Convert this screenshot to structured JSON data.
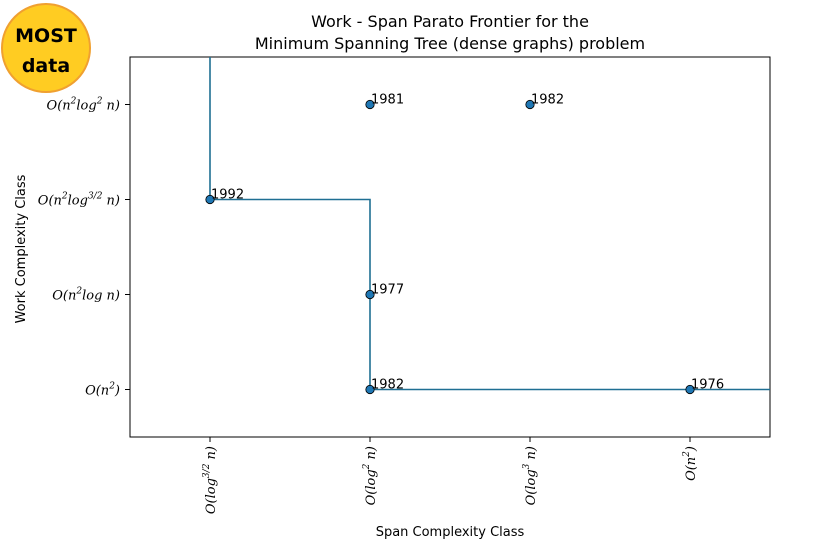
{
  "logo": {
    "line1": "MOST",
    "line2": "data",
    "fill": "#FFCC22",
    "stroke": "#F0A030"
  },
  "chart_data": {
    "type": "scatter",
    "title_lines": [
      "Work - Span Parato Frontier for the",
      "Minimum Spanning Tree (dense graphs) problem"
    ],
    "xlabel": "Span Complexity Class",
    "ylabel": "Work Complexity Class",
    "x_categories": [
      {
        "base": "O(log",
        "sup": "3/2",
        "rest": " n)"
      },
      {
        "base": "O(log",
        "sup": "2",
        "rest": " n)"
      },
      {
        "base": "O(log",
        "sup": "3",
        "rest": " n)"
      },
      {
        "base": "O(n",
        "sup": "2",
        "rest": ")"
      }
    ],
    "y_categories": [
      {
        "parts": [
          {
            "t": "O(n"
          },
          {
            "sup": "2"
          },
          {
            "t": ")"
          }
        ]
      },
      {
        "parts": [
          {
            "t": "O(n"
          },
          {
            "sup": "2"
          },
          {
            "t": "log n)"
          }
        ]
      },
      {
        "parts": [
          {
            "t": "O(n"
          },
          {
            "sup": "2"
          },
          {
            "t": "log"
          },
          {
            "sup": "3/2"
          },
          {
            "t": " n)"
          }
        ]
      },
      {
        "parts": [
          {
            "t": "O(n"
          },
          {
            "sup": "2"
          },
          {
            "t": "log"
          },
          {
            "sup": "2"
          },
          {
            "t": " n)"
          }
        ]
      }
    ],
    "xlim": [
      -0.5,
      3.5
    ],
    "ylim": [
      -0.5,
      3.5
    ],
    "points": [
      {
        "x": 1,
        "y": 3,
        "label": "1981"
      },
      {
        "x": 2,
        "y": 3,
        "label": "1982"
      },
      {
        "x": 0,
        "y": 2,
        "label": "1992"
      },
      {
        "x": 1,
        "y": 1,
        "label": "1977"
      },
      {
        "x": 1,
        "y": 0,
        "label": "1982"
      },
      {
        "x": 3,
        "y": 0,
        "label": "1976"
      }
    ],
    "frontier": [
      [
        0,
        3.5
      ],
      [
        0,
        2
      ],
      [
        1,
        2
      ],
      [
        1,
        0
      ],
      [
        3.5,
        0
      ]
    ],
    "colors": {
      "point": "#1f77b4",
      "line": "#1f6f93"
    },
    "grid": false
  }
}
